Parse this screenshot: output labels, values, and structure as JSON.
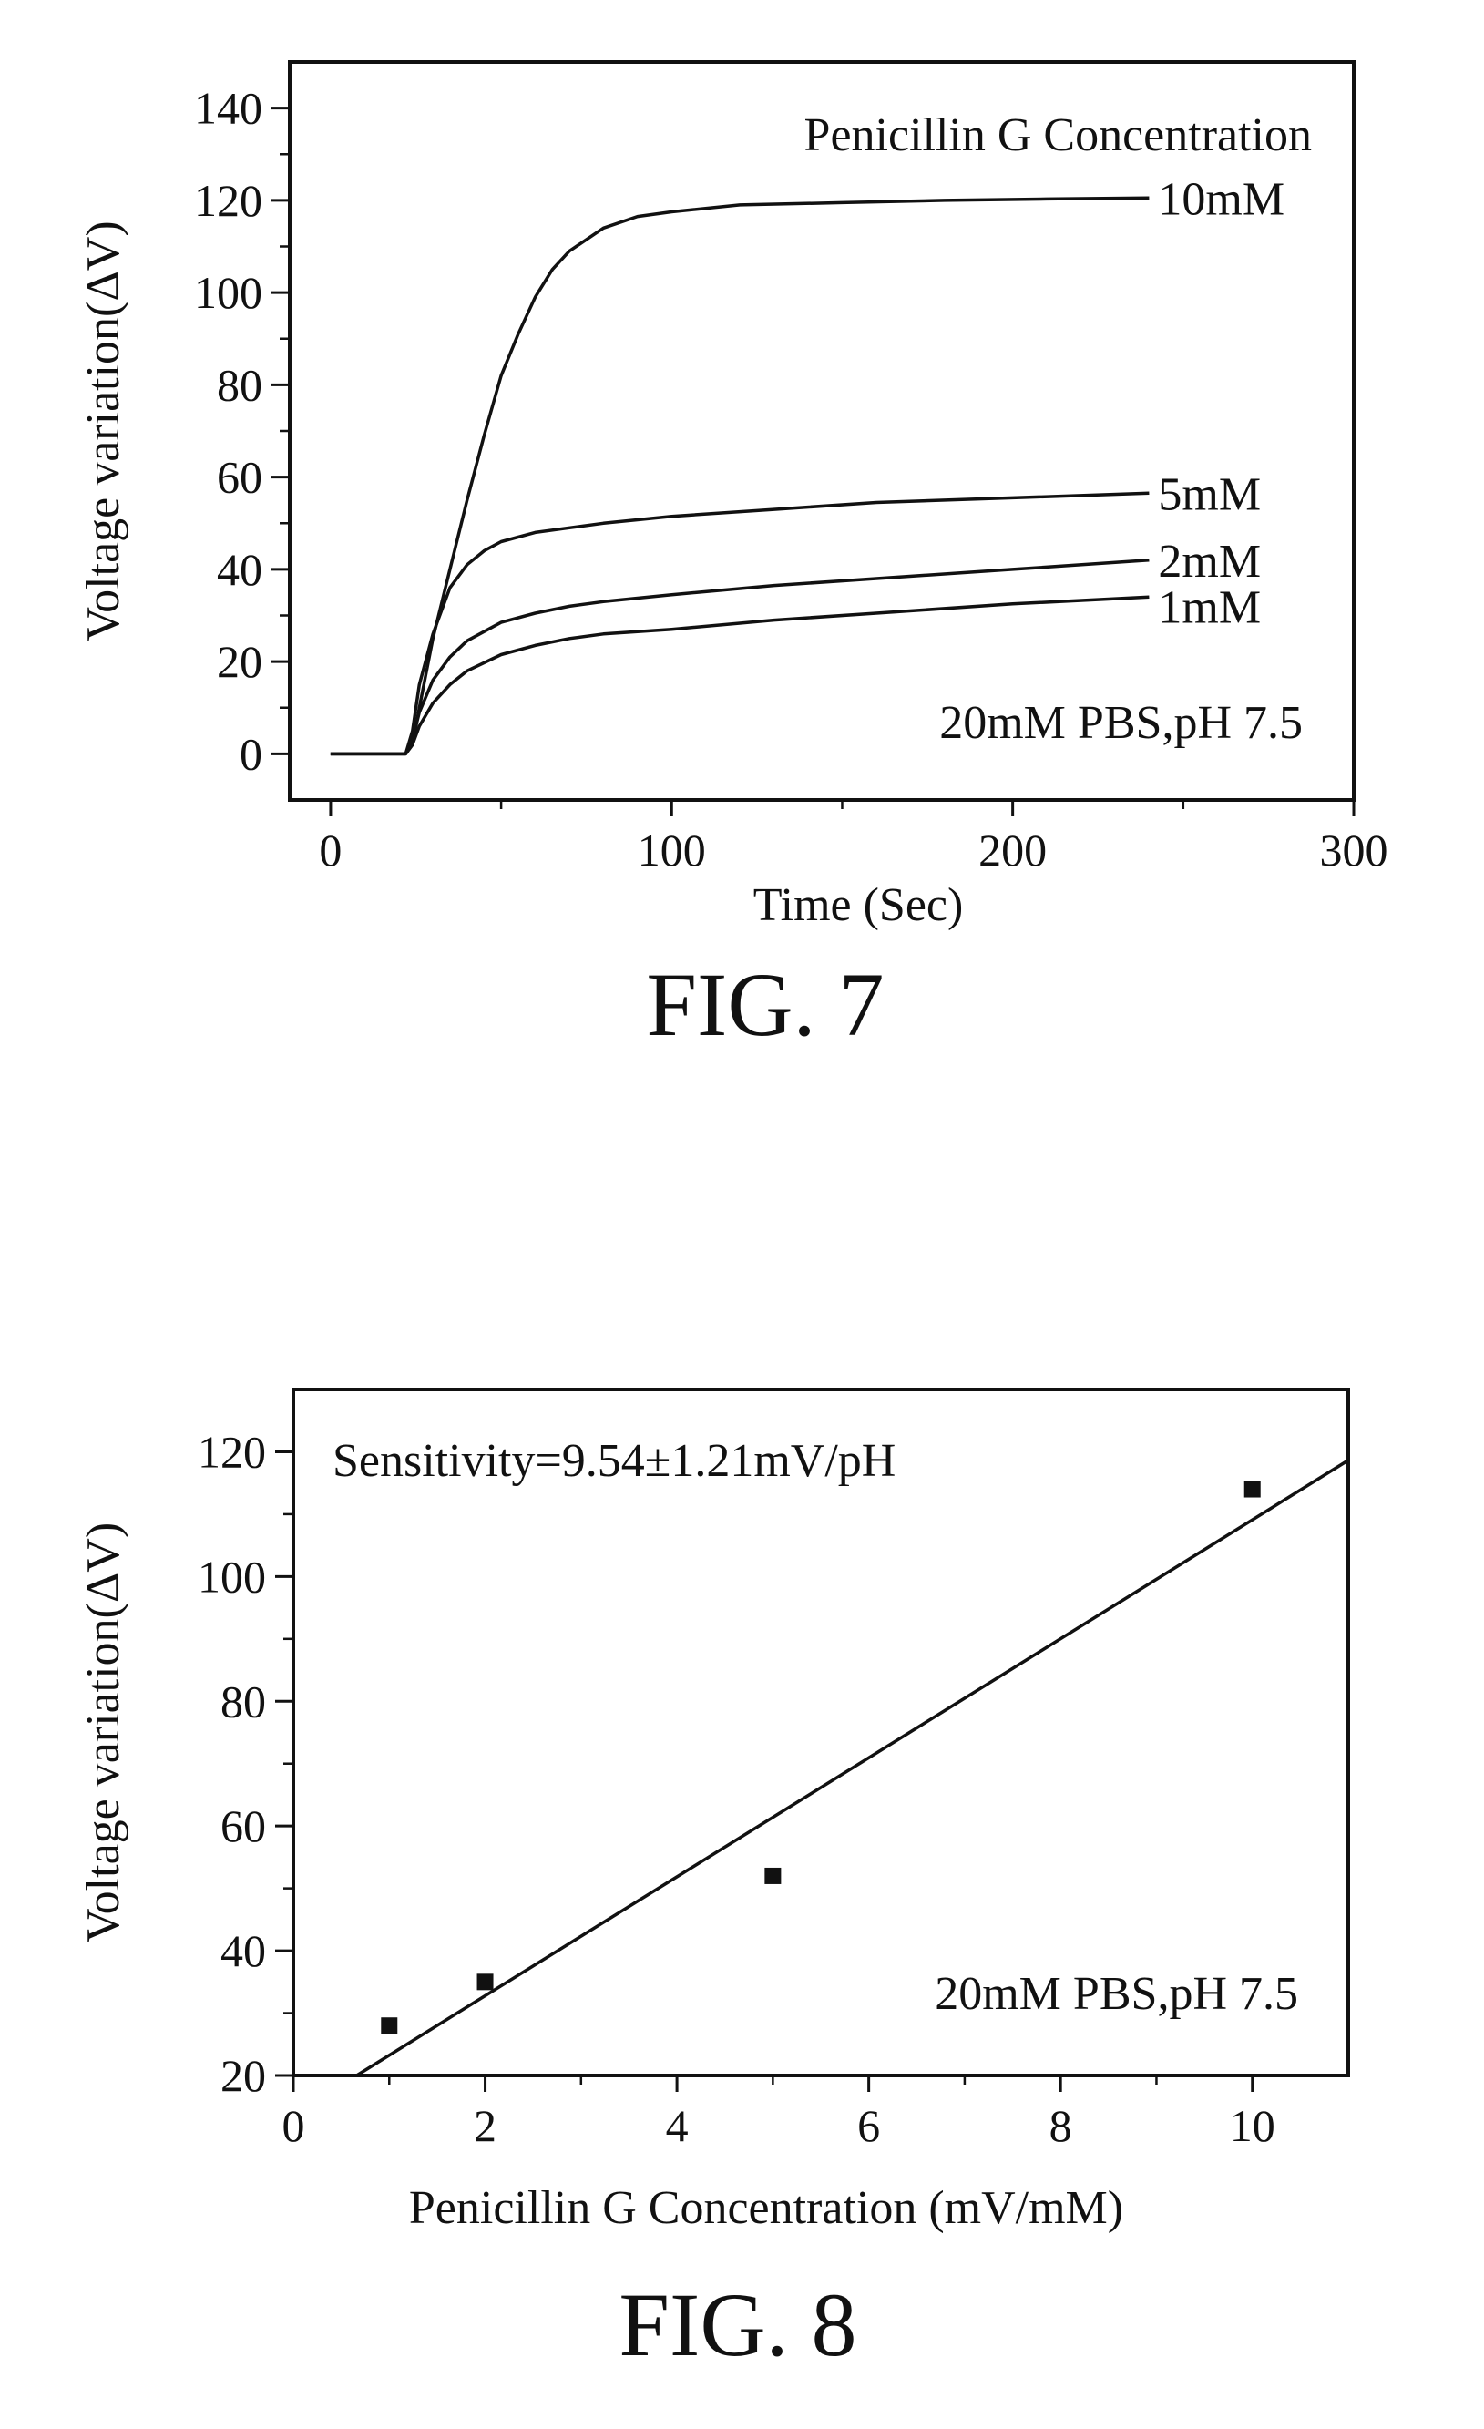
{
  "chart_data": [
    {
      "type": "line",
      "caption": "FIG. 7",
      "xlabel": "Time (Sec)",
      "ylabel": "Voltage variation(ΔV)",
      "xlim": [
        -12,
        300
      ],
      "ylim": [
        -10,
        150
      ],
      "xticks": [
        0,
        100,
        200,
        300
      ],
      "yticks": [
        0,
        20,
        40,
        60,
        80,
        100,
        120,
        140
      ],
      "grid": false,
      "legend_title": "Penicillin G Concentration",
      "annotation": "20mM PBS,pH 7.5",
      "series": [
        {
          "name": "10mM",
          "x": [
            0,
            22,
            24,
            26,
            30,
            35,
            40,
            45,
            50,
            55,
            60,
            65,
            70,
            80,
            90,
            100,
            120,
            150,
            180,
            210,
            240
          ],
          "y": [
            0,
            0,
            2,
            10,
            25,
            40,
            55,
            69,
            82,
            91,
            99,
            105,
            109,
            114,
            116.5,
            117.5,
            119,
            119.5,
            120,
            120.3,
            120.5
          ]
        },
        {
          "name": "5mM",
          "x": [
            0,
            22,
            24,
            26,
            30,
            35,
            40,
            45,
            50,
            60,
            70,
            80,
            100,
            130,
            160,
            200,
            240
          ],
          "y": [
            0,
            0,
            5,
            15,
            26,
            36,
            41,
            44,
            46,
            48,
            49,
            50,
            51.5,
            53,
            54.5,
            55.5,
            56.5
          ]
        },
        {
          "name": "2mM",
          "x": [
            0,
            22,
            24,
            26,
            30,
            35,
            40,
            50,
            60,
            70,
            80,
            100,
            130,
            160,
            200,
            240
          ],
          "y": [
            0,
            0,
            3,
            9,
            16,
            21,
            24.5,
            28.5,
            30.5,
            32,
            33,
            34.5,
            36.5,
            38,
            40,
            42
          ]
        },
        {
          "name": "1mM",
          "x": [
            0,
            22,
            24,
            26,
            30,
            35,
            40,
            50,
            60,
            70,
            80,
            100,
            130,
            160,
            200,
            240
          ],
          "y": [
            0,
            0,
            2,
            6,
            11,
            15,
            18,
            21.5,
            23.5,
            25,
            26,
            27,
            29,
            30.5,
            32.5,
            34
          ]
        }
      ]
    },
    {
      "type": "scatter",
      "caption": "FIG. 8",
      "xlabel": "Penicillin G Concentration (mV/mM)",
      "ylabel": "Voltage variation(ΔV)",
      "xlim": [
        0,
        11
      ],
      "ylim": [
        20,
        130
      ],
      "xticks": [
        0,
        2,
        4,
        6,
        8,
        10
      ],
      "yticks": [
        20,
        40,
        60,
        80,
        100,
        120
      ],
      "grid": false,
      "annotation_top": "Sensitivity=9.54±1.21mV/pH",
      "annotation": "20mM PBS,pH 7.5",
      "points": {
        "x": [
          1,
          2,
          5,
          10
        ],
        "y": [
          28,
          35,
          52,
          114
        ]
      },
      "fit_line": {
        "slope": 9.54,
        "intercept": 13.7
      }
    }
  ]
}
